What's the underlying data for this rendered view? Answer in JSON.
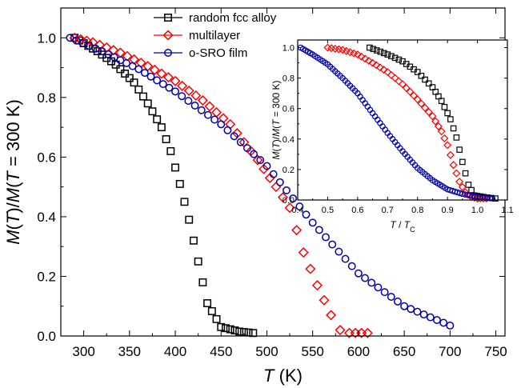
{
  "chart_data": [
    {
      "type": "scatter",
      "panel": "main",
      "xlabel": {
        "italic": "T",
        "rest": " (K)"
      },
      "ylabel": {
        "parts": [
          {
            "t": "M",
            "i": true
          },
          {
            "t": "(",
            "i": false
          },
          {
            "t": "T",
            "i": true
          },
          {
            "t": ")/",
            "i": false
          },
          {
            "t": "M",
            "i": true
          },
          {
            "t": "(",
            "i": false
          },
          {
            "t": "T",
            "i": true
          },
          {
            "t": " = 300 K)",
            "i": false
          }
        ]
      },
      "xlim": [
        275,
        760
      ],
      "ylim": [
        0,
        1.1
      ],
      "xticks": [
        300,
        350,
        400,
        450,
        500,
        550,
        600,
        650,
        700,
        750
      ],
      "xtick_labels": [
        "300",
        "350",
        "400",
        "450",
        "500",
        "550",
        "600",
        "650",
        "700",
        "750"
      ],
      "yticks": [
        0,
        0.2,
        0.4,
        0.6,
        0.8,
        1.0
      ],
      "ytick_labels": [
        "0.0",
        "0.2",
        "0.4",
        "0.6",
        "0.8",
        "1.0"
      ],
      "legend_position": "top-center",
      "series": [
        {
          "name": "random fcc alloy",
          "color": "#000000",
          "marker": "square",
          "x": [
            290,
            315,
            335,
            355,
            370,
            385,
            395,
            405,
            415,
            425,
            435,
            450,
            470,
            485
          ],
          "y": [
            1.0,
            0.955,
            0.91,
            0.85,
            0.78,
            0.7,
            0.62,
            0.51,
            0.39,
            0.25,
            0.11,
            0.03,
            0.015,
            0.01
          ]
        },
        {
          "name": "multilayer",
          "color": "#ff0000",
          "marker": "diamond",
          "x": [
            290,
            310,
            340,
            370,
            400,
            430,
            460,
            490,
            510,
            525,
            540,
            555,
            570,
            580,
            590,
            610
          ],
          "y": [
            1.0,
            0.985,
            0.95,
            0.905,
            0.855,
            0.79,
            0.71,
            0.59,
            0.5,
            0.43,
            0.28,
            0.17,
            0.07,
            0.02,
            0.01,
            0.01
          ]
        },
        {
          "name": "o-SRO film",
          "color": "#0000aa",
          "marker": "circle",
          "x": [
            285,
            320,
            360,
            400,
            450,
            500,
            550,
            600,
            650,
            700
          ],
          "y": [
            1.0,
            0.955,
            0.895,
            0.82,
            0.71,
            0.57,
            0.38,
            0.21,
            0.1,
            0.035
          ]
        }
      ]
    },
    {
      "type": "scatter",
      "panel": "inset",
      "xlabel": {
        "italic_a": "T",
        "slash": " / ",
        "italic_b": "T",
        "sub": "C"
      },
      "ylabel": {
        "parts": [
          {
            "t": "M",
            "i": true
          },
          {
            "t": "(",
            "i": false
          },
          {
            "t": "T",
            "i": true
          },
          {
            "t": ")/",
            "i": false
          },
          {
            "t": "M",
            "i": true
          },
          {
            "t": "(",
            "i": false
          },
          {
            "t": "T",
            "i": true
          },
          {
            "t": " = 300 K)",
            "i": false
          }
        ]
      },
      "xlim": [
        0.4,
        1.1
      ],
      "ylim": [
        0,
        1.05
      ],
      "xticks": [
        0.4,
        0.5,
        0.6,
        0.7,
        0.8,
        0.9,
        1.0,
        1.1
      ],
      "xtick_labels": [
        "0.4",
        "0.5",
        "0.6",
        "0.7",
        "0.8",
        "0.9",
        "1.0",
        "1.1"
      ],
      "yticks": [
        0,
        0.2,
        0.4,
        0.6,
        0.8,
        1.0
      ],
      "ytick_labels": [
        "0.0",
        "0.2",
        "0.4",
        "0.6",
        "0.8",
        "1.0"
      ],
      "series": [
        {
          "name": "random fcc alloy",
          "color": "#000000",
          "marker": "square",
          "x": [
            0.64,
            0.7,
            0.75,
            0.8,
            0.85,
            0.88,
            0.91,
            0.93,
            0.95,
            0.97,
            0.99,
            1.02,
            1.06
          ],
          "y": [
            1.0,
            0.955,
            0.91,
            0.84,
            0.74,
            0.65,
            0.53,
            0.41,
            0.25,
            0.1,
            0.03,
            0.02,
            0.01
          ]
        },
        {
          "name": "multilayer",
          "color": "#ff0000",
          "marker": "diamond",
          "x": [
            0.5,
            0.55,
            0.6,
            0.65,
            0.7,
            0.75,
            0.8,
            0.85,
            0.88,
            0.9,
            0.92,
            0.94,
            0.96,
            0.98,
            1.0,
            1.03
          ],
          "y": [
            1.0,
            0.985,
            0.955,
            0.9,
            0.84,
            0.76,
            0.66,
            0.55,
            0.45,
            0.36,
            0.23,
            0.12,
            0.05,
            0.02,
            0.01,
            0.01
          ]
        },
        {
          "name": "o-SRO film",
          "color": "#0000aa",
          "marker": "circle",
          "x": [
            0.41,
            0.45,
            0.5,
            0.55,
            0.6,
            0.65,
            0.7,
            0.75,
            0.8,
            0.85,
            0.9,
            0.95,
            1.0,
            1.05
          ],
          "y": [
            1.0,
            0.955,
            0.89,
            0.8,
            0.7,
            0.57,
            0.44,
            0.32,
            0.21,
            0.13,
            0.07,
            0.04,
            0.02,
            0.01
          ]
        }
      ]
    }
  ]
}
